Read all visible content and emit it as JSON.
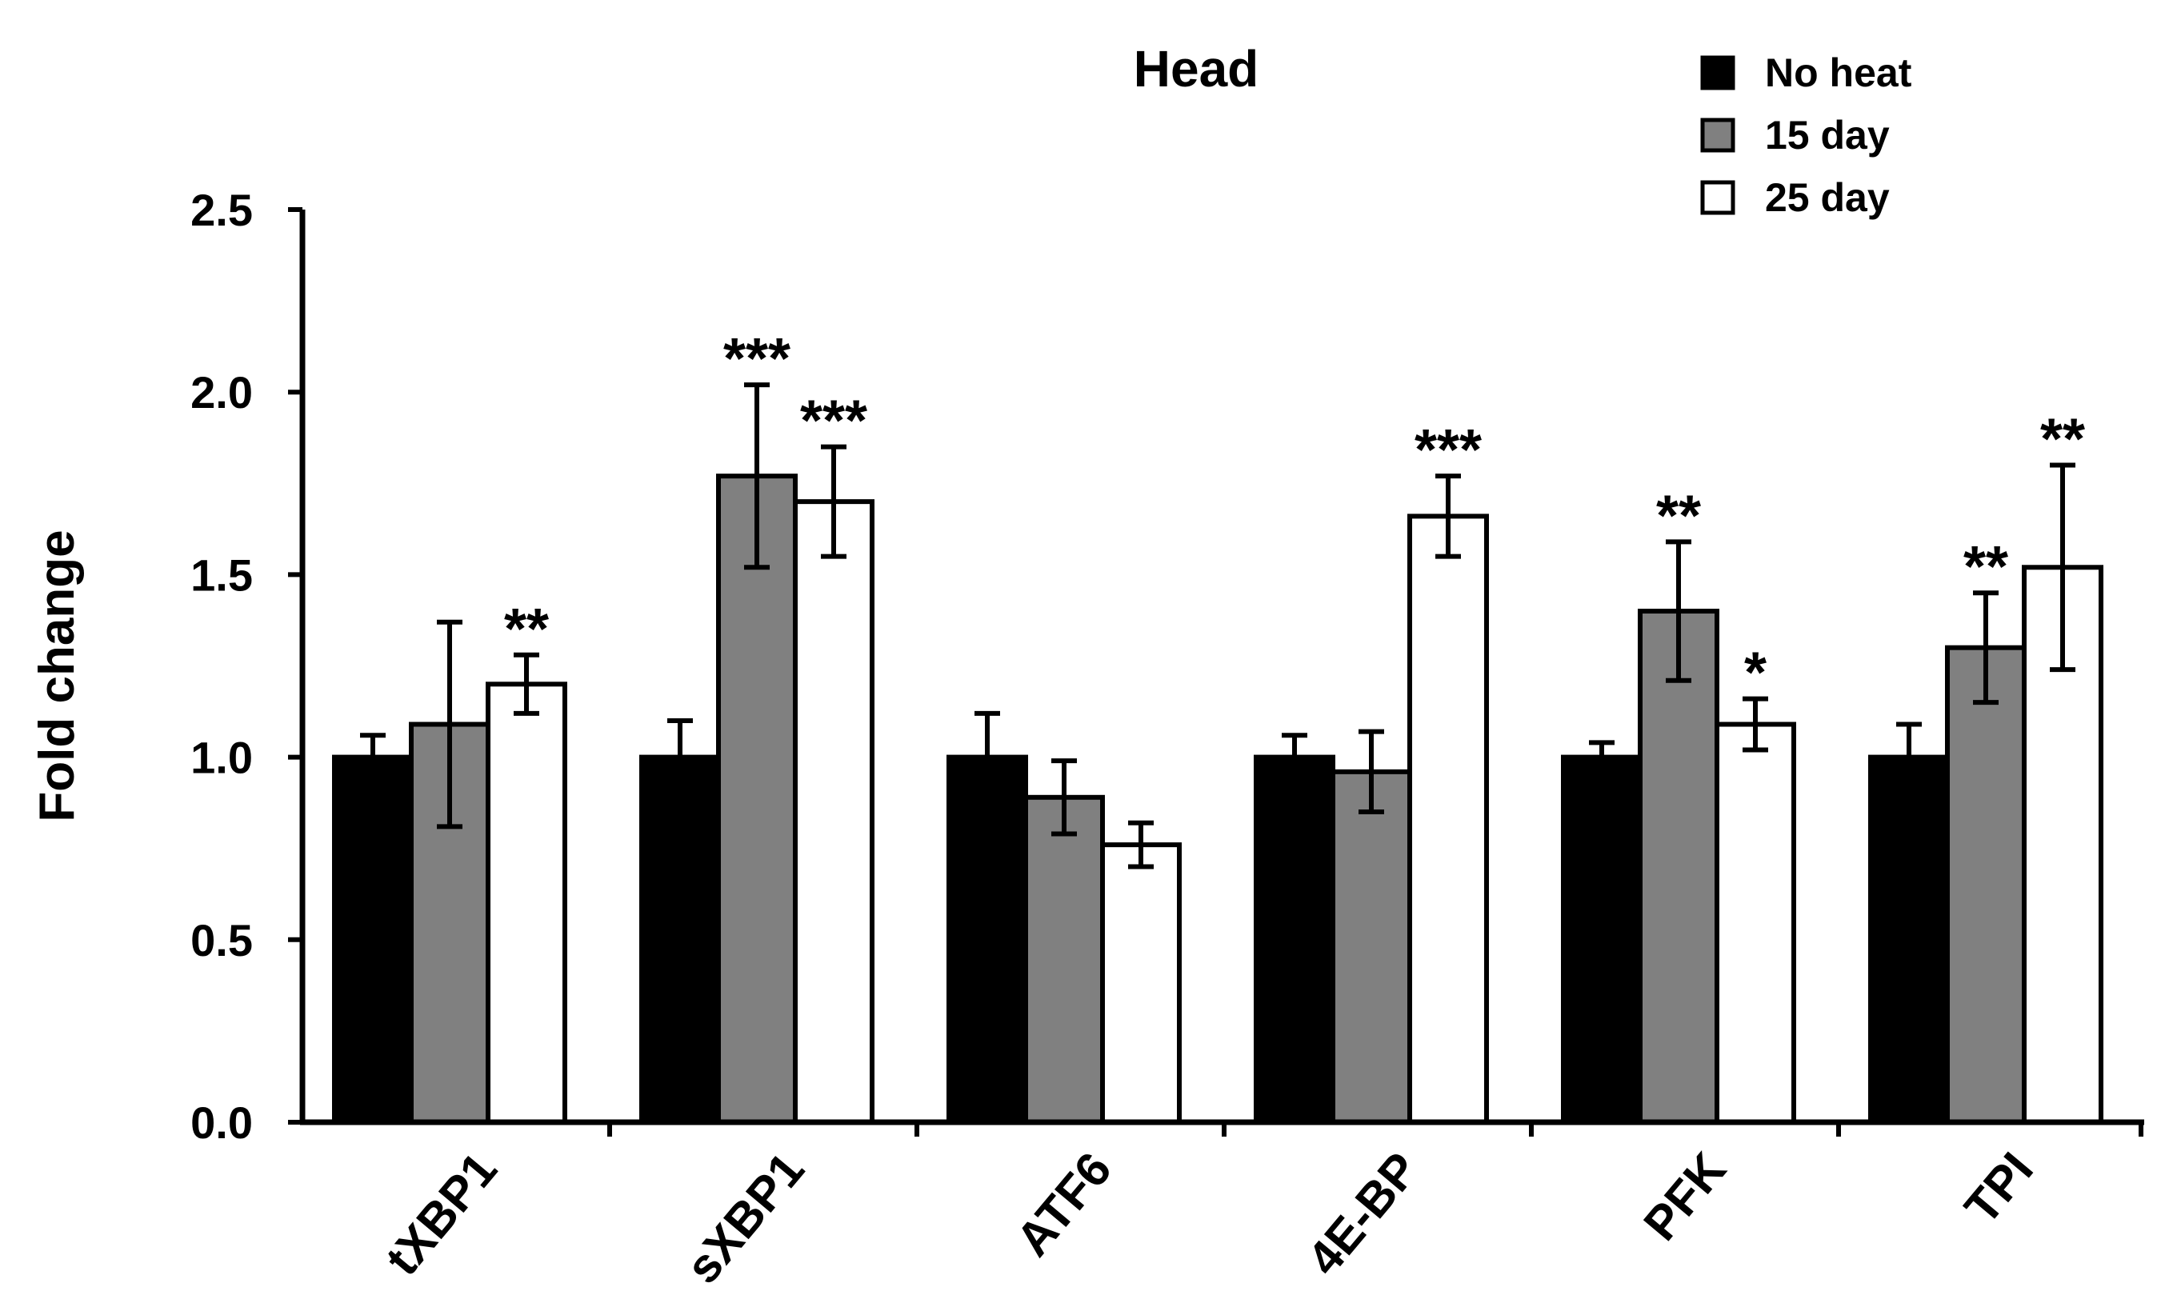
{
  "chart_data": {
    "type": "bar",
    "title": "Head",
    "xlabel": "",
    "ylabel": "Fold change",
    "ylim": [
      0,
      2.5
    ],
    "yticks": [
      "0.0",
      "0.5",
      "1.0",
      "1.5",
      "2.0",
      "2.5"
    ],
    "categories": [
      "tXBP1",
      "sXBP1",
      "ATF6",
      "4E-BP",
      "PFK",
      "TPI"
    ],
    "legend_position": "top-right",
    "series": [
      {
        "name": "No heat",
        "color": "#000000",
        "values": [
          1.0,
          1.0,
          1.0,
          1.0,
          1.0,
          1.0
        ],
        "errors": [
          0.06,
          0.1,
          0.12,
          0.06,
          0.04,
          0.09
        ],
        "annotations": [
          "",
          "",
          "",
          "",
          "",
          ""
        ]
      },
      {
        "name": "15 day",
        "color": "#808080",
        "values": [
          1.09,
          1.77,
          0.89,
          0.96,
          1.4,
          1.3
        ],
        "errors": [
          0.28,
          0.25,
          0.1,
          0.11,
          0.19,
          0.15
        ],
        "annotations": [
          "",
          "***",
          "",
          "",
          "**",
          "**"
        ]
      },
      {
        "name": "25 day",
        "color": "#ffffff",
        "values": [
          1.2,
          1.7,
          0.76,
          1.66,
          1.09,
          1.52
        ],
        "errors": [
          0.08,
          0.15,
          0.06,
          0.11,
          0.07,
          0.28
        ],
        "annotations": [
          "**",
          "***",
          "",
          "***",
          "*",
          "**"
        ]
      }
    ]
  }
}
